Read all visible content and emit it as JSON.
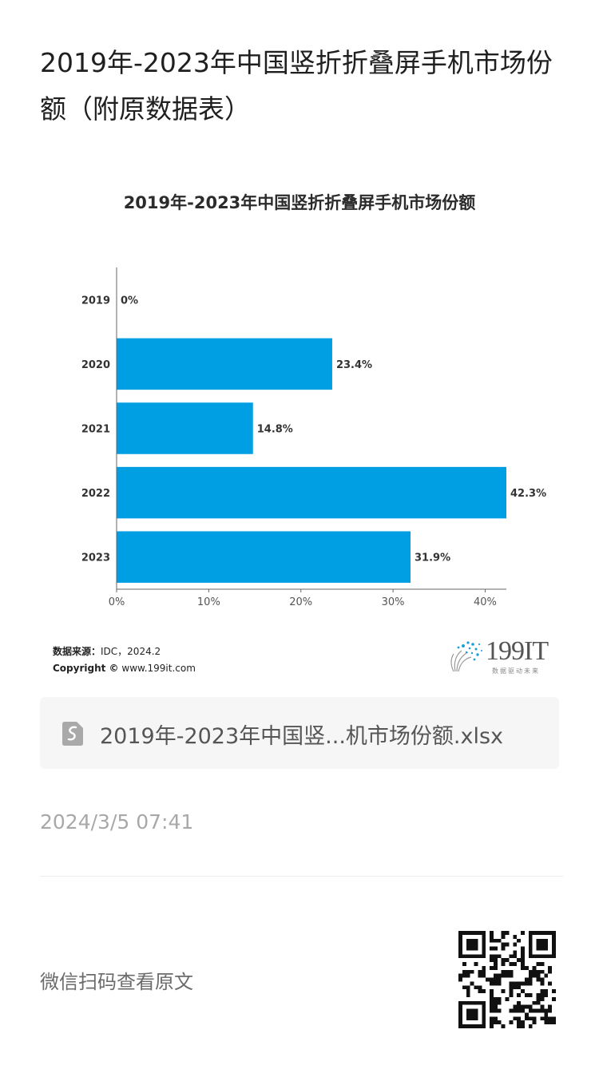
{
  "article": {
    "title": "2019年-2023年中国竖折折叠屏手机市场份额（附原数据表）"
  },
  "chart_data": {
    "type": "bar",
    "orientation": "horizontal",
    "title": "2019年-2023年中国竖折折叠屏手机市场份额",
    "categories": [
      "2019",
      "2020",
      "2021",
      "2022",
      "2023"
    ],
    "values": [
      0,
      23.4,
      14.8,
      42.3,
      31.9
    ],
    "data_labels": [
      "0%",
      "23.4%",
      "14.8%",
      "42.3%",
      "31.9%"
    ],
    "xlim": [
      0,
      42.3
    ],
    "x_ticks": [
      0,
      10,
      20,
      30,
      40
    ],
    "x_tick_labels": [
      "0%",
      "10%",
      "20%",
      "30%",
      "40%"
    ],
    "xlabel": "",
    "ylabel": "",
    "grid": false,
    "bar_color": "#009fe3"
  },
  "source": {
    "label": "数据来源：",
    "value": "IDC，2024.2",
    "copyright_label": "Copyright ©",
    "copyright_value": "www.199it.com"
  },
  "brand": {
    "name": "199IT",
    "tagline": "数据驱动未来"
  },
  "file": {
    "icon": "spreadsheet-file-icon",
    "name": "2019年-2023年中国竖...机市场份额.xlsx"
  },
  "post": {
    "timestamp": "2024/3/5 07:41"
  },
  "footer": {
    "qr_hint": "微信扫码查看原文",
    "qr_icon": "qr-code-icon"
  }
}
